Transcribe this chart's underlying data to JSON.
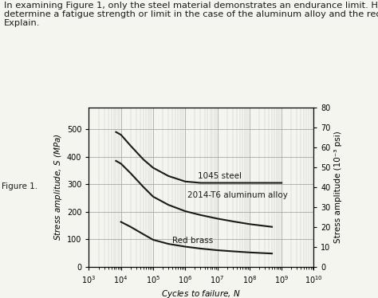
{
  "title_line1": "In examining Figure 1, only the steel material demonstrates an endurance limit. How do we",
  "title_line2": "determine a fatigue strength or limit in the case of the aluminum alloy and the red brass?",
  "title_line3": "Explain.",
  "xlabel": "Cycles to failure, N",
  "ylabel_left": "Stress amplitude, S (MPa)",
  "ylabel_right": "Stress amplitude (10⁻³ psi)",
  "figure_label": "Figure 1.",
  "ylim_left": [
    0,
    580
  ],
  "ylim_right": [
    0,
    80
  ],
  "yticks_left": [
    0,
    100,
    200,
    300,
    400,
    500
  ],
  "yticks_right": [
    0,
    10,
    20,
    30,
    40,
    50,
    60,
    70,
    80
  ],
  "steel_label": "1045 steel",
  "aluminum_label": "2014-T6 aluminum alloy",
  "brass_label": "Red brass",
  "steel_x": [
    7000,
    10000.0,
    20000.0,
    50000.0,
    100000.0,
    300000.0,
    1000000.0,
    3000000.0,
    10000000.0,
    100000000.0,
    1000000000.0
  ],
  "steel_y": [
    490,
    480,
    440,
    390,
    360,
    330,
    310,
    305,
    305,
    305,
    305
  ],
  "aluminum_x": [
    7000,
    10000.0,
    20000.0,
    50000.0,
    100000.0,
    300000.0,
    1000000.0,
    3000000.0,
    10000000.0,
    30000000.0,
    100000000.0,
    500000000.0
  ],
  "aluminum_y": [
    385,
    375,
    340,
    290,
    255,
    225,
    202,
    188,
    175,
    165,
    155,
    145
  ],
  "brass_x": [
    10000.0,
    20000.0,
    50000.0,
    100000.0,
    300000.0,
    1000000.0,
    3000000.0,
    10000000.0,
    30000000.0,
    100000000.0,
    500000000.0
  ],
  "brass_y": [
    163,
    145,
    118,
    98,
    83,
    73,
    66,
    60,
    56,
    52,
    48
  ],
  "line_color": "#1a1a1a",
  "bg_color": "#f5f5f0",
  "grid_color": "#999999",
  "text_color": "#1a1a1a",
  "title_fontsize": 8.2,
  "label_fontsize": 7.5,
  "tick_fontsize": 7.0,
  "annotation_fontsize": 7.5
}
